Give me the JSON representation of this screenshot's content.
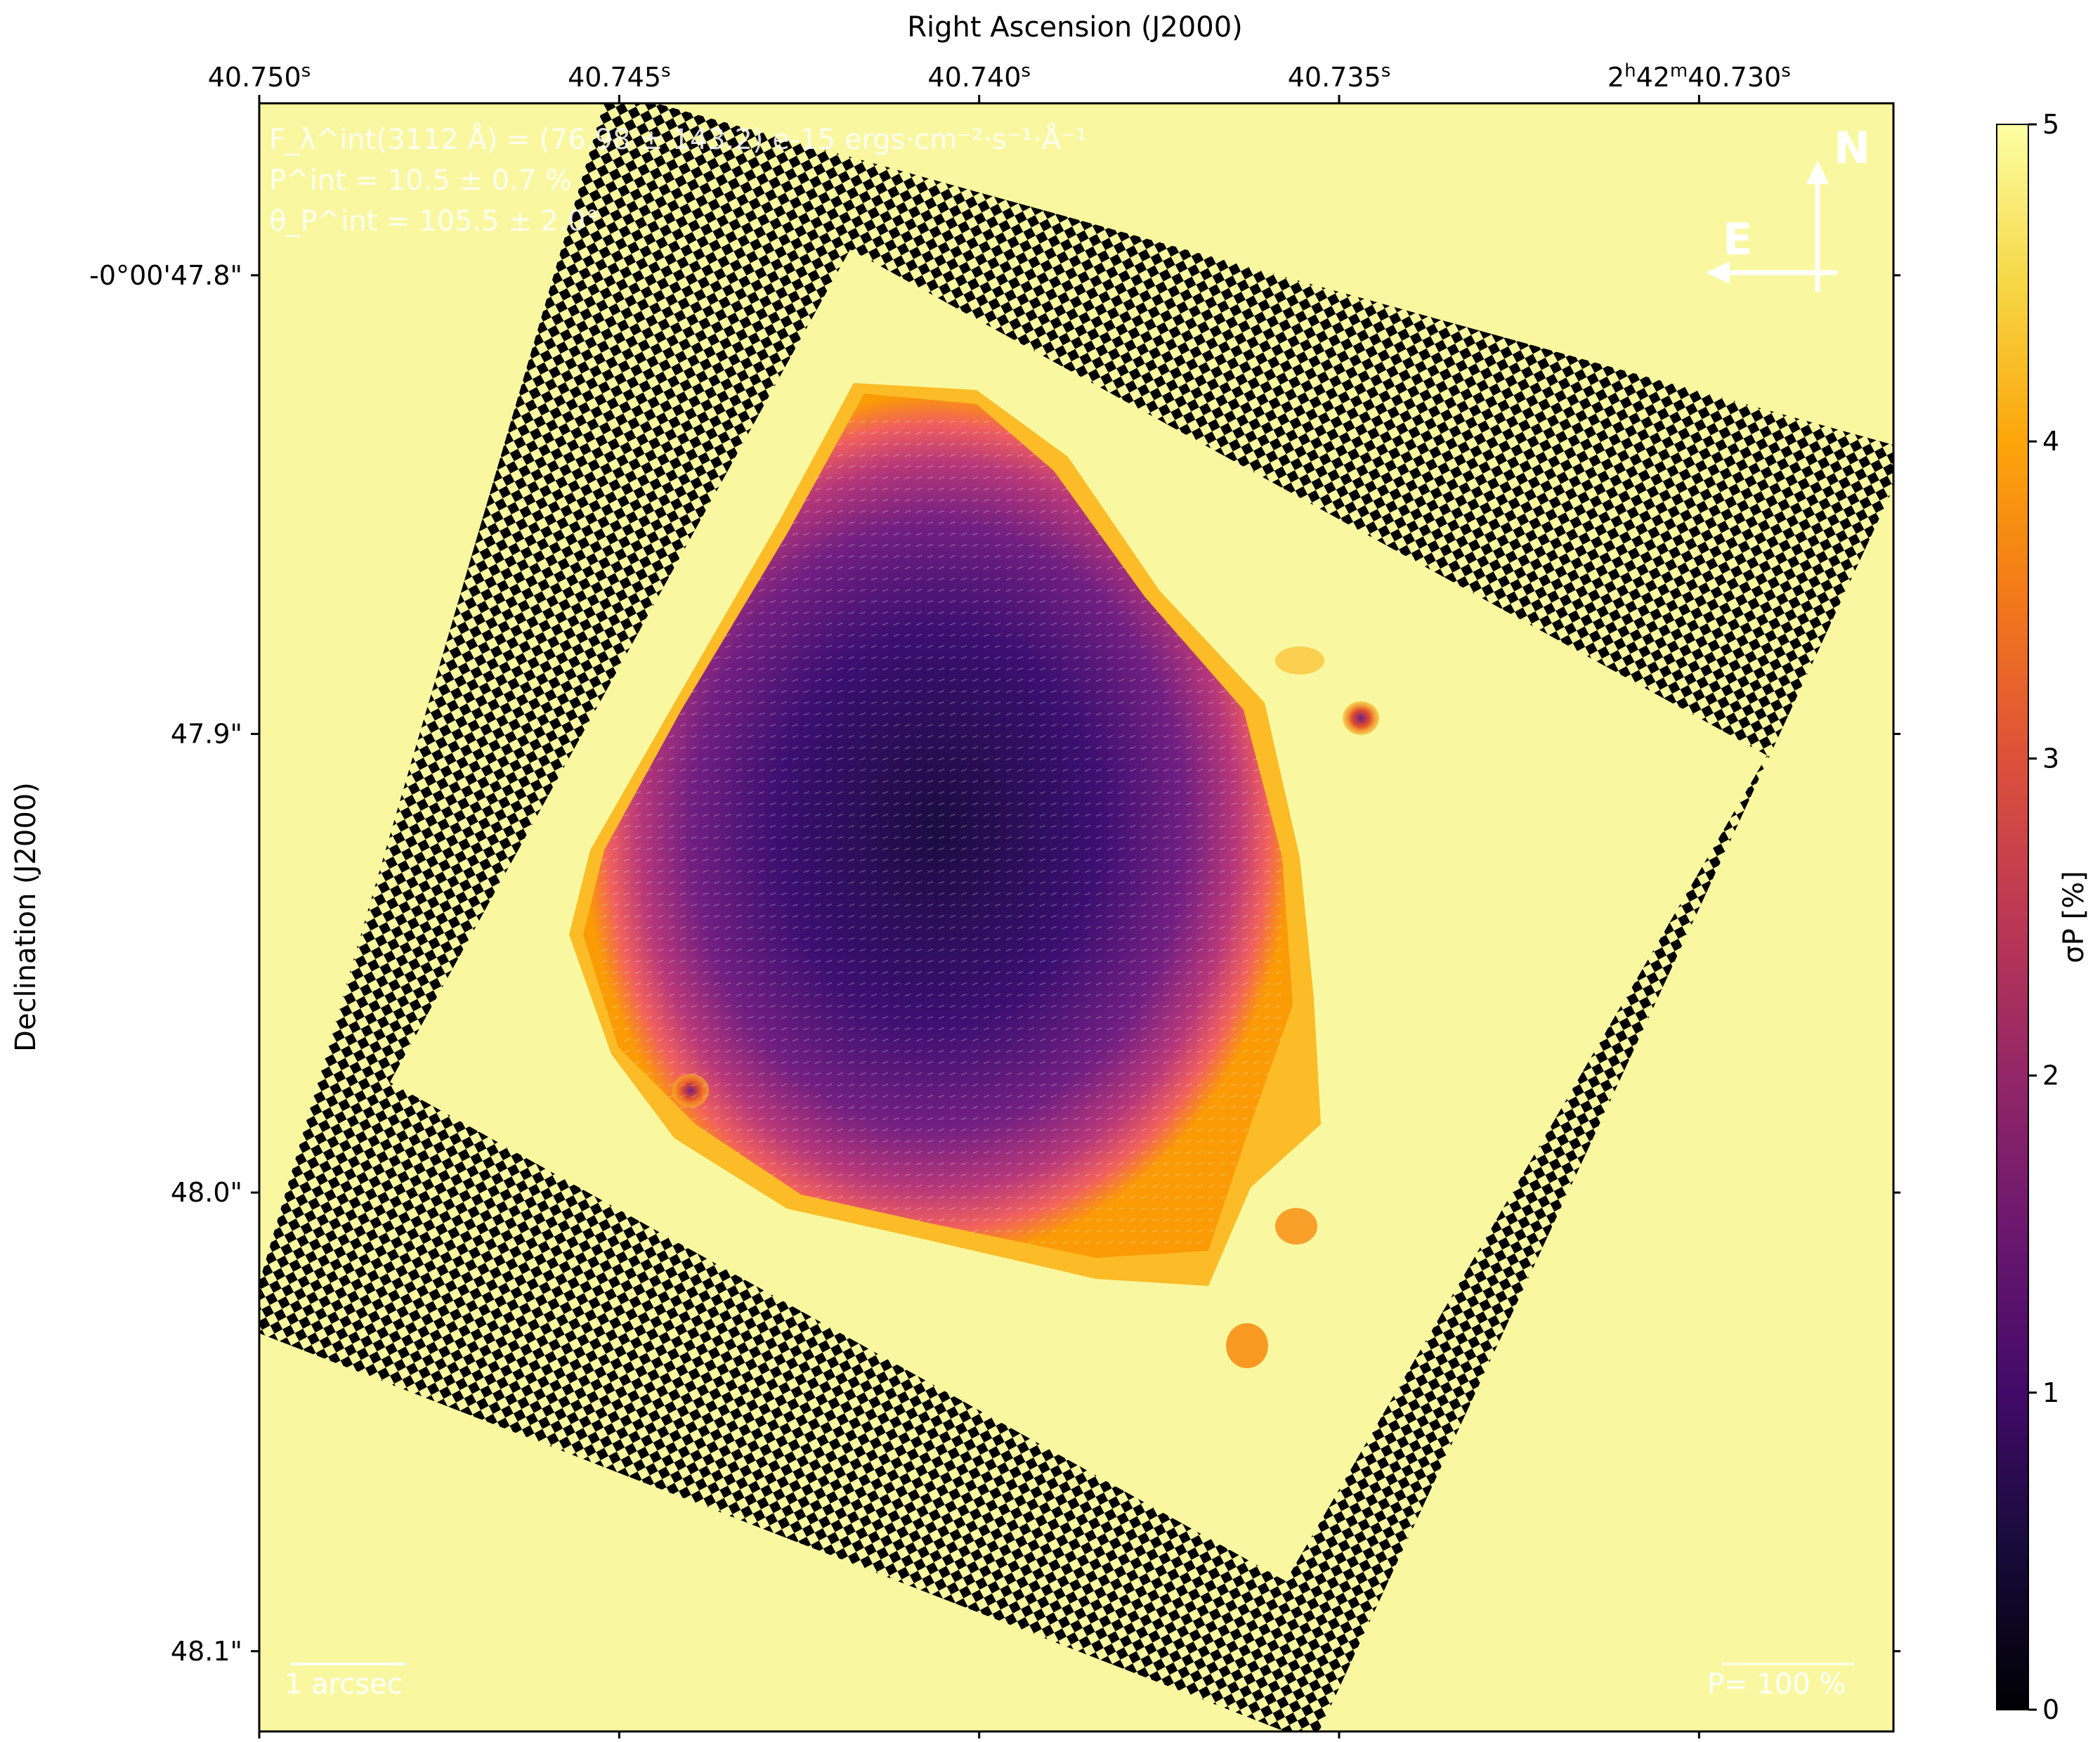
{
  "chart_data": {
    "type": "heatmap",
    "top_axis_label": "Right Ascension (J2000)",
    "left_axis_label": "Declination (J2000)",
    "ra_ticks": [
      {
        "value": 40.75,
        "main": "40.750",
        "sup": "s"
      },
      {
        "value": 40.745,
        "main": "40.745",
        "sup": "s"
      },
      {
        "value": 40.74,
        "main": "40.740",
        "sup": "s"
      },
      {
        "value": 40.735,
        "main": "40.735",
        "sup": "s"
      },
      {
        "value": 40.73,
        "main": "2h42m40.730",
        "sup": "s"
      }
    ],
    "ra_range": [
      40.75,
      40.7273
    ],
    "dec_ticks": [
      {
        "value": 47.8,
        "label": "-0°00'47.8\""
      },
      {
        "value": 47.9,
        "label": "47.9\""
      },
      {
        "value": 48.0,
        "label": "48.0\""
      },
      {
        "value": 48.1,
        "label": "48.1\""
      }
    ],
    "dec_range": [
      47.7625,
      48.1175
    ],
    "colorbar": {
      "label": "σP [%]",
      "range": [
        0,
        5
      ],
      "ticks": [
        "0",
        "1",
        "2",
        "3",
        "4",
        "5"
      ],
      "colormap": "inferno"
    },
    "annotations": {
      "flux": "F_λ^int(3112 Å) = (76.98 ± 143.2) e-15 ergs·cm⁻²·s⁻¹·Å⁻¹",
      "pol_degree": "P^int = 10.5 ± 0.7 %",
      "pol_angle": "θ_P^int = 105.5 ± 2.0°",
      "scale_bar": "1 arcsec",
      "vector_scale": "P= 100 %",
      "compass_north": "N",
      "compass_east": "E"
    }
  }
}
